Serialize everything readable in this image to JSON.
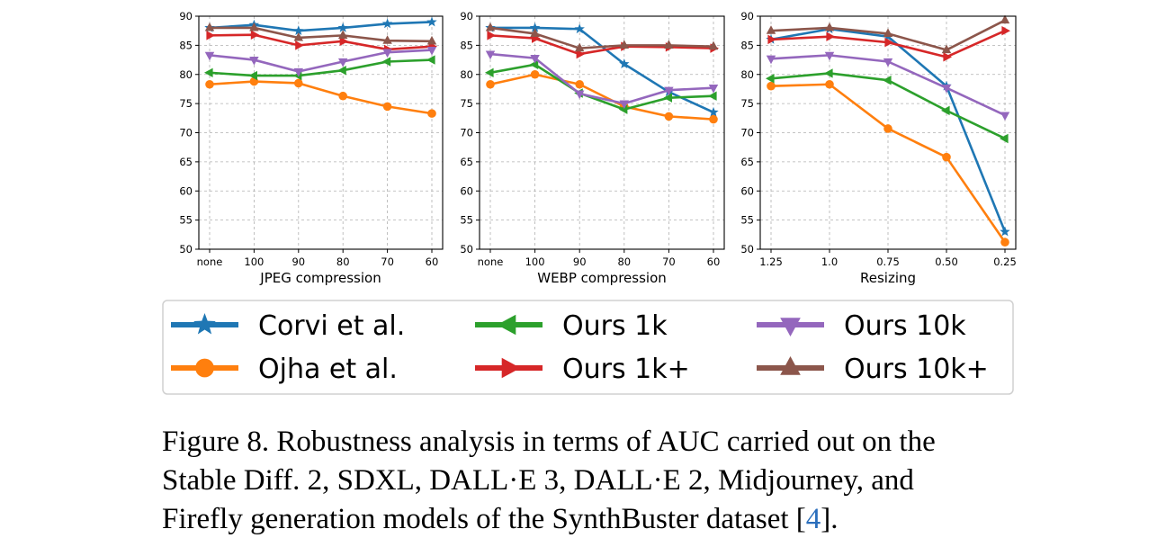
{
  "chart_data": [
    {
      "type": "line",
      "xlabel": "JPEG compression",
      "categories": [
        "none",
        "100",
        "90",
        "80",
        "70",
        "60"
      ],
      "ylim": [
        50,
        90
      ],
      "yticks": [
        50,
        55,
        60,
        65,
        70,
        75,
        80,
        85,
        90
      ],
      "grid": true,
      "series": [
        {
          "name": "Corvi et al.",
          "values": [
            88.0,
            88.5,
            87.5,
            88.0,
            88.7,
            89.0
          ]
        },
        {
          "name": "Ojha et al.",
          "values": [
            78.3,
            78.8,
            78.5,
            76.3,
            74.5,
            73.3
          ]
        },
        {
          "name": "Ours 1k",
          "values": [
            80.3,
            79.8,
            79.8,
            80.7,
            82.2,
            82.5
          ]
        },
        {
          "name": "Ours 1k+",
          "values": [
            86.7,
            86.8,
            85.0,
            85.7,
            84.3,
            84.8
          ]
        },
        {
          "name": "Ours 10k",
          "values": [
            83.3,
            82.5,
            80.5,
            82.2,
            83.8,
            84.2
          ]
        },
        {
          "name": "Ours 10k+",
          "values": [
            88.0,
            88.0,
            86.3,
            86.7,
            85.8,
            85.7
          ]
        }
      ]
    },
    {
      "type": "line",
      "xlabel": "WEBP compression",
      "categories": [
        "none",
        "100",
        "90",
        "80",
        "70",
        "60"
      ],
      "ylim": [
        50,
        90
      ],
      "yticks": [
        50,
        55,
        60,
        65,
        70,
        75,
        80,
        85,
        90
      ],
      "grid": true,
      "series": [
        {
          "name": "Corvi et al.",
          "values": [
            88.0,
            88.0,
            87.8,
            81.8,
            77.0,
            73.5
          ]
        },
        {
          "name": "Ojha et al.",
          "values": [
            78.3,
            80.0,
            78.3,
            74.5,
            72.8,
            72.3
          ]
        },
        {
          "name": "Ours 1k",
          "values": [
            80.3,
            81.7,
            76.8,
            74.0,
            76.0,
            76.3
          ]
        },
        {
          "name": "Ours 1k+",
          "values": [
            86.7,
            86.2,
            83.5,
            84.8,
            84.7,
            84.5
          ]
        },
        {
          "name": "Ours 10k",
          "values": [
            83.5,
            82.8,
            76.7,
            75.0,
            77.3,
            77.7
          ]
        },
        {
          "name": "Ours 10k+",
          "values": [
            88.0,
            87.0,
            84.5,
            85.0,
            85.0,
            84.8
          ]
        }
      ]
    },
    {
      "type": "line",
      "xlabel": "Resizing",
      "categories": [
        "1.25",
        "1.0",
        "0.75",
        "0.50",
        "0.25"
      ],
      "ylim": [
        50,
        90
      ],
      "yticks": [
        50,
        55,
        60,
        65,
        70,
        75,
        80,
        85,
        90
      ],
      "grid": true,
      "series": [
        {
          "name": "Corvi et al.",
          "values": [
            86.0,
            87.8,
            86.5,
            78.0,
            53.0
          ]
        },
        {
          "name": "Ojha et al.",
          "values": [
            78.0,
            78.3,
            70.7,
            65.8,
            51.2
          ]
        },
        {
          "name": "Ours 1k",
          "values": [
            79.3,
            80.2,
            79.0,
            73.8,
            69.0
          ]
        },
        {
          "name": "Ours 1k+",
          "values": [
            86.0,
            86.5,
            85.5,
            83.0,
            87.5
          ]
        },
        {
          "name": "Ours 10k",
          "values": [
            82.7,
            83.3,
            82.2,
            77.7,
            73.0
          ]
        },
        {
          "name": "Ours 10k+",
          "values": [
            87.5,
            88.0,
            87.0,
            84.2,
            89.3
          ]
        }
      ]
    }
  ],
  "legend": [
    {
      "name": "Corvi et al.",
      "color": "#1f77b4",
      "marker": "star"
    },
    {
      "name": "Ojha et al.",
      "color": "#ff7f0e",
      "marker": "circle"
    },
    {
      "name": "Ours 1k",
      "color": "#2ca02c",
      "marker": "tri-left"
    },
    {
      "name": "Ours 1k+",
      "color": "#d62728",
      "marker": "tri-right"
    },
    {
      "name": "Ours 10k",
      "color": "#9467bd",
      "marker": "tri-down"
    },
    {
      "name": "Ours 10k+",
      "color": "#8c564b",
      "marker": "tri-up"
    }
  ],
  "caption": {
    "line1": "Figure 8. Robustness analysis in terms of AUC carried out on the",
    "line2": "Stable Diff.  2, SDXL, DALL·E 3, DALL·E 2, Midjourney, and",
    "line3_pre": "Firefly generation models of the SynthBuster dataset [",
    "line3_ref": "4",
    "line3_post": "]."
  }
}
